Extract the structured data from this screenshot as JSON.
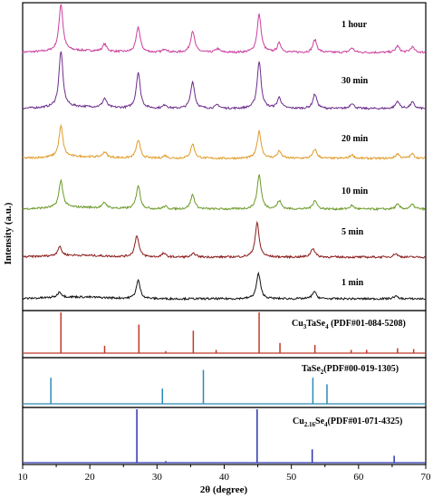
{
  "chart_data": {
    "type": "line",
    "x_label": "2θ (degree)",
    "y_label": "Intensity (a.u.)",
    "x_range": [
      10,
      70
    ],
    "x_ticks": [
      "10",
      "20",
      "30",
      "40",
      "50",
      "60",
      "70"
    ],
    "patterns": [
      {
        "name": "1 hour",
        "color": "#cc3f9f",
        "peaks": [
          [
            15.7,
            52
          ],
          [
            22.2,
            8
          ],
          [
            27.2,
            28
          ],
          [
            31.2,
            4
          ],
          [
            35.3,
            24
          ],
          [
            39.0,
            4
          ],
          [
            45.2,
            42
          ],
          [
            48.2,
            10
          ],
          [
            53.5,
            14
          ],
          [
            59.0,
            5
          ],
          [
            65.8,
            7
          ],
          [
            68.0,
            6
          ]
        ]
      },
      {
        "name": "30 min",
        "color": "#6d2d8c",
        "peaks": [
          [
            15.7,
            62
          ],
          [
            22.2,
            10
          ],
          [
            27.2,
            40
          ],
          [
            31.2,
            4
          ],
          [
            35.3,
            30
          ],
          [
            39.0,
            4
          ],
          [
            45.2,
            52
          ],
          [
            48.2,
            12
          ],
          [
            53.5,
            16
          ],
          [
            59.0,
            6
          ],
          [
            65.8,
            8
          ],
          [
            68.0,
            7
          ]
        ]
      },
      {
        "name": "20 min",
        "color": "#e09b28",
        "peaks": [
          [
            15.7,
            34
          ],
          [
            22.2,
            6
          ],
          [
            27.2,
            20
          ],
          [
            31.2,
            3
          ],
          [
            35.3,
            16
          ],
          [
            45.2,
            30
          ],
          [
            48.2,
            8
          ],
          [
            53.5,
            10
          ],
          [
            59.0,
            4
          ],
          [
            65.8,
            5
          ],
          [
            68.0,
            5
          ]
        ]
      },
      {
        "name": "10 min",
        "color": "#6d9a2a",
        "peaks": [
          [
            15.7,
            30
          ],
          [
            22.2,
            6
          ],
          [
            27.2,
            26
          ],
          [
            31.2,
            3
          ],
          [
            35.3,
            16
          ],
          [
            45.2,
            38
          ],
          [
            48.2,
            9
          ],
          [
            53.5,
            10
          ],
          [
            59.0,
            4
          ],
          [
            65.8,
            5
          ],
          [
            68.0,
            5
          ]
        ]
      },
      {
        "name": "5 min",
        "color": "#8b1c1c",
        "peaks": [
          [
            15.5,
            10
          ],
          [
            27.0,
            24
          ],
          [
            31.0,
            4
          ],
          [
            35.5,
            4
          ],
          [
            44.9,
            38
          ],
          [
            53.2,
            10
          ],
          [
            65.5,
            4
          ]
        ]
      },
      {
        "name": "1 min",
        "color": "#111111",
        "peaks": [
          [
            15.5,
            6
          ],
          [
            27.2,
            20
          ],
          [
            45.1,
            28
          ],
          [
            53.4,
            8
          ],
          [
            65.5,
            3
          ]
        ]
      }
    ],
    "references": [
      {
        "name_main": "Cu",
        "sub1": "3",
        "name_mid": "TaSe",
        "sub2": "4",
        "name_tail": " (PDF#01-084-5208)",
        "color": "#c0392b",
        "lines": [
          [
            15.7,
            100
          ],
          [
            22.2,
            18
          ],
          [
            27.3,
            70
          ],
          [
            31.3,
            5
          ],
          [
            35.4,
            55
          ],
          [
            38.8,
            8
          ],
          [
            45.2,
            100
          ],
          [
            48.3,
            25
          ],
          [
            53.5,
            20
          ],
          [
            58.9,
            8
          ],
          [
            61.2,
            8
          ],
          [
            65.8,
            12
          ],
          [
            68.2,
            10
          ]
        ]
      },
      {
        "name_main": "TaSe",
        "sub1": "2",
        "name_mid": "",
        "sub2": "",
        "name_tail": "(PDF#00-019-1305)",
        "color": "#2a8ab8",
        "lines": [
          [
            14.2,
            60
          ],
          [
            30.8,
            35
          ],
          [
            36.9,
            78
          ],
          [
            53.2,
            60
          ],
          [
            55.3,
            45
          ]
        ]
      },
      {
        "name_main": "Cu",
        "sub1": "2.16",
        "name_mid": "Se",
        "sub2": "4",
        "name_tail": "(PDF#01-071-4325)",
        "color": "#2b35b0",
        "lines": [
          [
            27.0,
            100
          ],
          [
            31.3,
            3
          ],
          [
            44.9,
            100
          ],
          [
            53.1,
            25
          ],
          [
            65.3,
            13
          ]
        ]
      }
    ]
  }
}
